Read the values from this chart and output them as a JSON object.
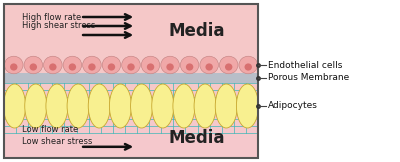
{
  "fig_width": 4.0,
  "fig_height": 1.62,
  "dpi": 100,
  "bg_outer": "#ffffff",
  "border_color": "#555555",
  "top_media_bg": "#f5c8c8",
  "bottom_media_bg": "#f5c8cc",
  "endothelial_body_color": "#f0a8a8",
  "endothelial_nucleus_color": "#d87070",
  "membrane_color": "#b8bec8",
  "adipocyte_fill": "#f8f090",
  "adipocyte_edge": "#c8a830",
  "adipocyte_net_color": "#40b8b8",
  "top_media_text": "Media",
  "bottom_media_text": "Media",
  "top_label1": "High flow rate",
  "top_label2": "High shear stress",
  "bottom_label1": "Low flow rate",
  "bottom_label2": "Low shear stress",
  "legend_labels": [
    "Endothelial cells",
    "Porous Membrane",
    "Adipocytes"
  ],
  "arrow_color": "#111111",
  "text_color": "#222222"
}
